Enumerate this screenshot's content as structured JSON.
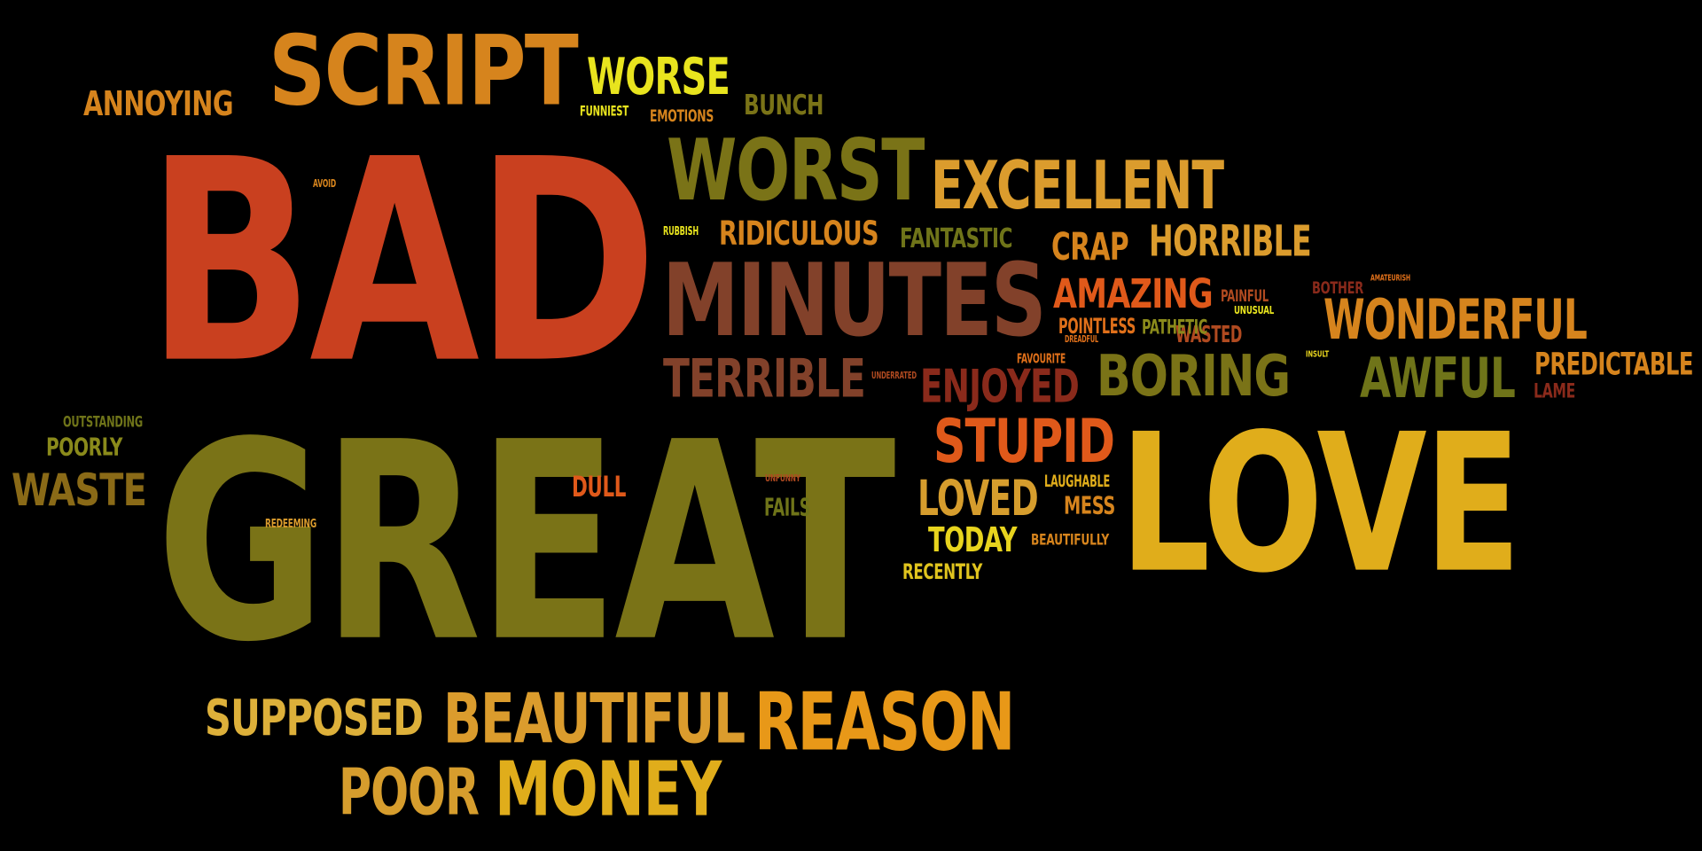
{
  "words": [
    {
      "id": "bad",
      "text": "BAD",
      "color": "#c9401f"
    },
    {
      "id": "great",
      "text": "GREAT",
      "color": "#7a7317"
    },
    {
      "id": "love",
      "text": "LOVE",
      "color": "#e0ad1b"
    },
    {
      "id": "script",
      "text": "SCRIPT",
      "color": "#d6841d"
    },
    {
      "id": "minutes",
      "text": "MINUTES",
      "color": "#82412a"
    },
    {
      "id": "worst",
      "text": "WORST",
      "color": "#7a7317"
    },
    {
      "id": "worse",
      "text": "WORSE",
      "color": "#e8e41e"
    },
    {
      "id": "excellent",
      "text": "EXCELLENT",
      "color": "#db9c2d"
    },
    {
      "id": "reason",
      "text": "REASON",
      "color": "#e89818"
    },
    {
      "id": "beautiful",
      "text": "BEAUTIFUL",
      "color": "#db9c2d"
    },
    {
      "id": "money",
      "text": "MONEY",
      "color": "#e0ad1b"
    },
    {
      "id": "poor",
      "text": "POOR",
      "color": "#d69d2d"
    },
    {
      "id": "supposed",
      "text": "SUPPOSED",
      "color": "#ddb03a"
    },
    {
      "id": "boring",
      "text": "BORING",
      "color": "#7a7317"
    },
    {
      "id": "wonderful",
      "text": "WONDERFUL",
      "color": "#d6841d"
    },
    {
      "id": "terrible",
      "text": "TERRIBLE",
      "color": "#82412a"
    },
    {
      "id": "awful",
      "text": "AWFUL",
      "color": "#6f7419"
    },
    {
      "id": "stupid",
      "text": "STUPID",
      "color": "#e0591a"
    },
    {
      "id": "loved",
      "text": "LOVED",
      "color": "#d69d2d"
    },
    {
      "id": "horrible",
      "text": "HORRIBLE",
      "color": "#db9c2d"
    },
    {
      "id": "amazing",
      "text": "AMAZING",
      "color": "#e0591a"
    },
    {
      "id": "enjoyed",
      "text": "ENJOYED",
      "color": "#8a2a1b"
    },
    {
      "id": "waste",
      "text": "WASTE",
      "color": "#8a6a17"
    },
    {
      "id": "predictable",
      "text": "PREDICTABLE",
      "color": "#d6841d"
    },
    {
      "id": "annoying",
      "text": "ANNOYING",
      "color": "#d6841d"
    },
    {
      "id": "ridiculous",
      "text": "RIDICULOUS",
      "color": "#d6841d"
    },
    {
      "id": "crap",
      "text": "CRAP",
      "color": "#d6841d"
    },
    {
      "id": "fantastic",
      "text": "FANTASTIC",
      "color": "#6f7419"
    },
    {
      "id": "today",
      "text": "TODAY",
      "color": "#e8d41e"
    },
    {
      "id": "bunch",
      "text": "BUNCH",
      "color": "#7a7317"
    },
    {
      "id": "dull",
      "text": "DULL",
      "color": "#e0591a"
    },
    {
      "id": "poorly",
      "text": "POORLY",
      "color": "#8a8a1b"
    },
    {
      "id": "mess",
      "text": "MESS",
      "color": "#d6841d"
    },
    {
      "id": "wasted",
      "text": "WASTED",
      "color": "#b04a20"
    },
    {
      "id": "fails",
      "text": "FAILS",
      "color": "#6f7419"
    },
    {
      "id": "pointless",
      "text": "POINTLESS",
      "color": "#e0701a"
    },
    {
      "id": "pathetic",
      "text": "PATHETIC",
      "color": "#8a8a1b"
    },
    {
      "id": "recently",
      "text": "RECENTLY",
      "color": "#e0c41e"
    },
    {
      "id": "lame",
      "text": "LAME",
      "color": "#8a2a1b"
    },
    {
      "id": "emotions",
      "text": "EMOTIONS",
      "color": "#d6841d"
    },
    {
      "id": "outstanding",
      "text": "OUTSTANDING",
      "color": "#6f7419"
    },
    {
      "id": "laughable",
      "text": "LAUGHABLE",
      "color": "#e0ad1b"
    },
    {
      "id": "bother",
      "text": "BOTHER",
      "color": "#8a2a1b"
    },
    {
      "id": "painful",
      "text": "PAINFUL",
      "color": "#b04a20"
    },
    {
      "id": "beautifully",
      "text": "BEAUTIFULLY",
      "color": "#d6841d"
    },
    {
      "id": "funniest",
      "text": "FUNNIEST",
      "color": "#e8e41e"
    },
    {
      "id": "favourite",
      "text": "FAVOURITE",
      "color": "#e0701a"
    },
    {
      "id": "rubbish",
      "text": "RUBBISH",
      "color": "#e8e41e"
    },
    {
      "id": "unusual",
      "text": "UNUSUAL",
      "color": "#e8e41e"
    },
    {
      "id": "redeeming",
      "text": "REDEEMING",
      "color": "#db9c2d"
    },
    {
      "id": "avoid",
      "text": "AVOID",
      "color": "#d6841d"
    },
    {
      "id": "underrated",
      "text": "UNDERRATED",
      "color": "#b04a20"
    },
    {
      "id": "unfunny",
      "text": "UNFUNNY",
      "color": "#b04a20"
    },
    {
      "id": "dreadful",
      "text": "DREADFUL",
      "color": "#e0701a"
    },
    {
      "id": "insult",
      "text": "INSULT",
      "color": "#e8d41e"
    },
    {
      "id": "amateurish",
      "text": "AMATEURISH",
      "color": "#e0701a"
    }
  ]
}
